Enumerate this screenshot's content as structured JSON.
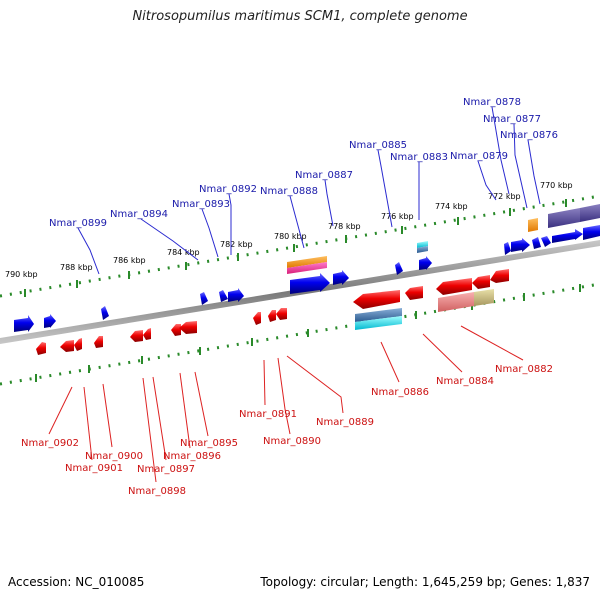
{
  "title": "Nitrosopumilus maritimus SCM1, complete genome",
  "footer": {
    "accession": "Accession: NC_010085",
    "topology": "Topology: circular; Length: 1,645,259 bp; Genes: 1,837"
  },
  "colors": {
    "forward_gene": "#0000ee",
    "reverse_gene": "#ee0000",
    "forward_label": "#1a1aaa",
    "reverse_label": "#cc1111",
    "tick": "#2a8a2a",
    "backbone": "#8a8a8a"
  },
  "scale_labels": [
    "770 kbp",
    "772 kbp",
    "774 kbp",
    "776 kbp",
    "778 kbp",
    "780 kbp",
    "782 kbp",
    "784 kbp",
    "786 kbp",
    "788 kbp",
    "790 kbp"
  ],
  "forward_labels": [
    "Nmar_0878",
    "Nmar_0877",
    "Nmar_0876",
    "Nmar_0879",
    "Nmar_0885",
    "Nmar_0883",
    "Nmar_0887",
    "Nmar_0888",
    "Nmar_0892",
    "Nmar_0893",
    "Nmar_0894",
    "Nmar_0899"
  ],
  "reverse_labels": [
    "Nmar_0882",
    "Nmar_0884",
    "Nmar_0886",
    "Nmar_0889",
    "Nmar_0890",
    "Nmar_0891",
    "Nmar_0895",
    "Nmar_0896",
    "Nmar_0897",
    "Nmar_0898",
    "Nmar_0900",
    "Nmar_0901",
    "Nmar_0902"
  ]
}
